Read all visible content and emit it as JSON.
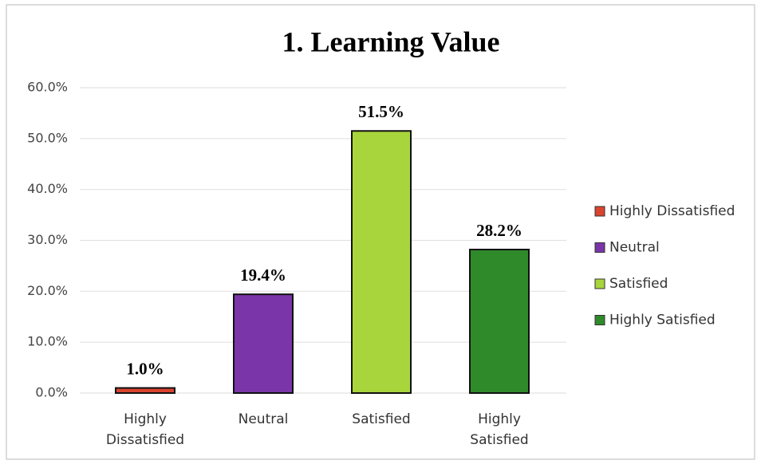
{
  "chart_data": {
    "type": "bar",
    "title": "1. Learning Value",
    "categories": [
      "Highly Dissatisfied",
      "Neutral",
      "Satisfied",
      "Highly Satisfied"
    ],
    "values": [
      1.0,
      19.4,
      51.5,
      28.2
    ],
    "value_labels": [
      "1.0%",
      "19.4%",
      "51.5%",
      "28.2%"
    ],
    "colors": [
      "#d9442f",
      "#7a35a8",
      "#a9d53c",
      "#2f8a2a"
    ],
    "ylim": [
      0,
      60
    ],
    "yticks": [
      {
        "value": 0,
        "label": "0.0%"
      },
      {
        "value": 10,
        "label": "10.0%"
      },
      {
        "value": 20,
        "label": "20.0%"
      },
      {
        "value": 30,
        "label": "30.0%"
      },
      {
        "value": 40,
        "label": "40.0%"
      },
      {
        "value": 50,
        "label": "50.0%"
      },
      {
        "value": 60,
        "label": "60.0%"
      }
    ],
    "grid": true,
    "legend": "right"
  }
}
